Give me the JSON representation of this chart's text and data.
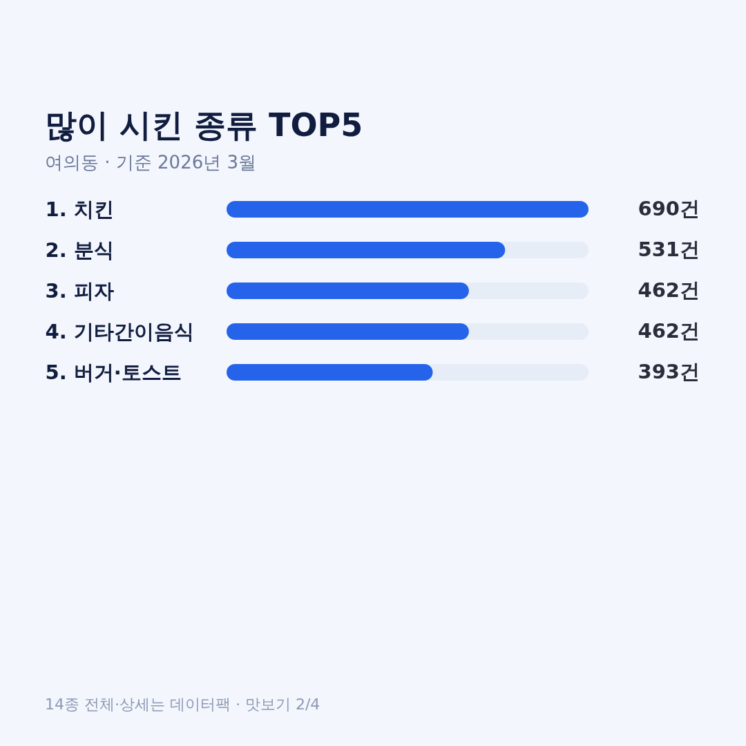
{
  "chart_data": {
    "type": "bar",
    "orientation": "horizontal",
    "title": "많이 시킨 종류 TOP5",
    "subtitle": "여의동 · 기준 2026년 3월",
    "categories": [
      "1. 치킨",
      "2. 분식",
      "3. 피자",
      "4. 기타간이음식",
      "5. 버거·토스트"
    ],
    "values": [
      690,
      531,
      462,
      462,
      393
    ],
    "value_labels": [
      "690건",
      "531건",
      "462건",
      "462건",
      "393건"
    ],
    "color": "#2563eb",
    "xlim": [
      0,
      690
    ],
    "tick_labels": "y",
    "annotations": [
      "14종 전체·상세는 데이터팩 · 맛보기 2/4"
    ]
  }
}
